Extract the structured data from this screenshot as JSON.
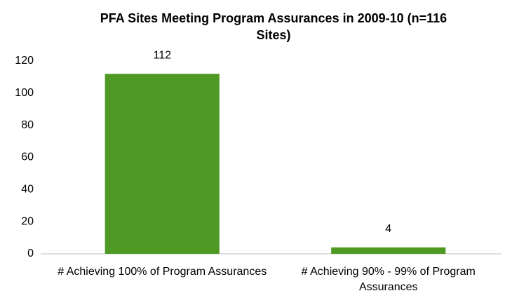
{
  "chart_data": {
    "type": "bar",
    "title": "PFA Sites Meeting Program Assurances in 2009-10 (n=116 Sites)",
    "categories": [
      "# Achieving 100% of Program Assurances",
      "# Achieving 90% - 99% of Program Assurances"
    ],
    "values": [
      112,
      4
    ],
    "color": "#4f9a25",
    "ylim": [
      0,
      120
    ],
    "yticks": [
      0,
      20,
      40,
      60,
      80,
      100,
      120
    ],
    "grid": false
  }
}
